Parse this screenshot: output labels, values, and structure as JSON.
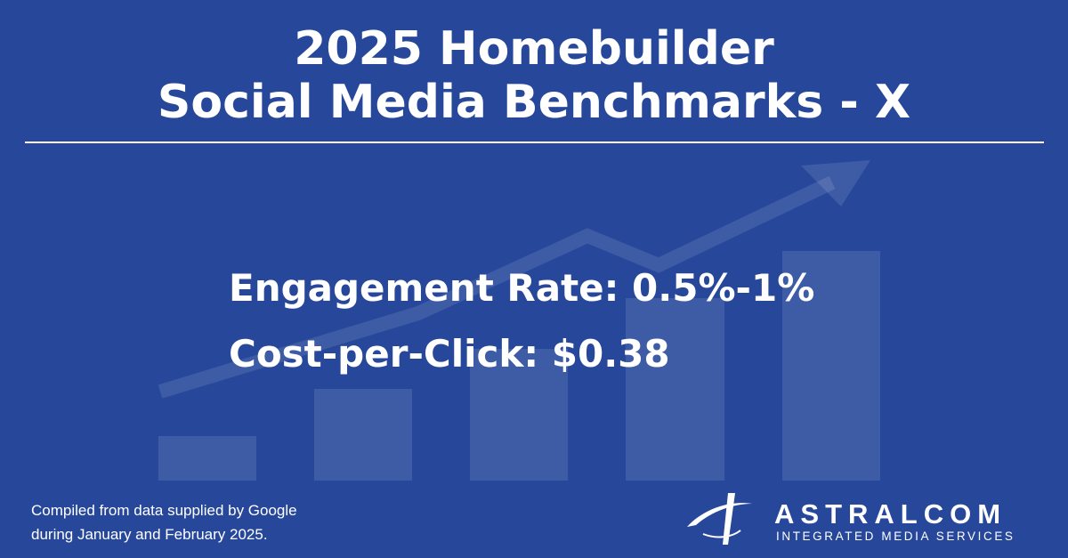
{
  "header": {
    "title_lines": [
      "2025 Homebuilder",
      "Social Media Benchmarks - X"
    ]
  },
  "metrics": [
    "Engagement Rate: 0.5%-1%",
    "Cost-per-Click: $0.38"
  ],
  "footnote": [
    "Compiled from data supplied by Google",
    "during January and February 2025."
  ],
  "logo": {
    "name": "ASTRALCOM",
    "tagline": "INTEGRATED MEDIA SERVICES"
  }
}
